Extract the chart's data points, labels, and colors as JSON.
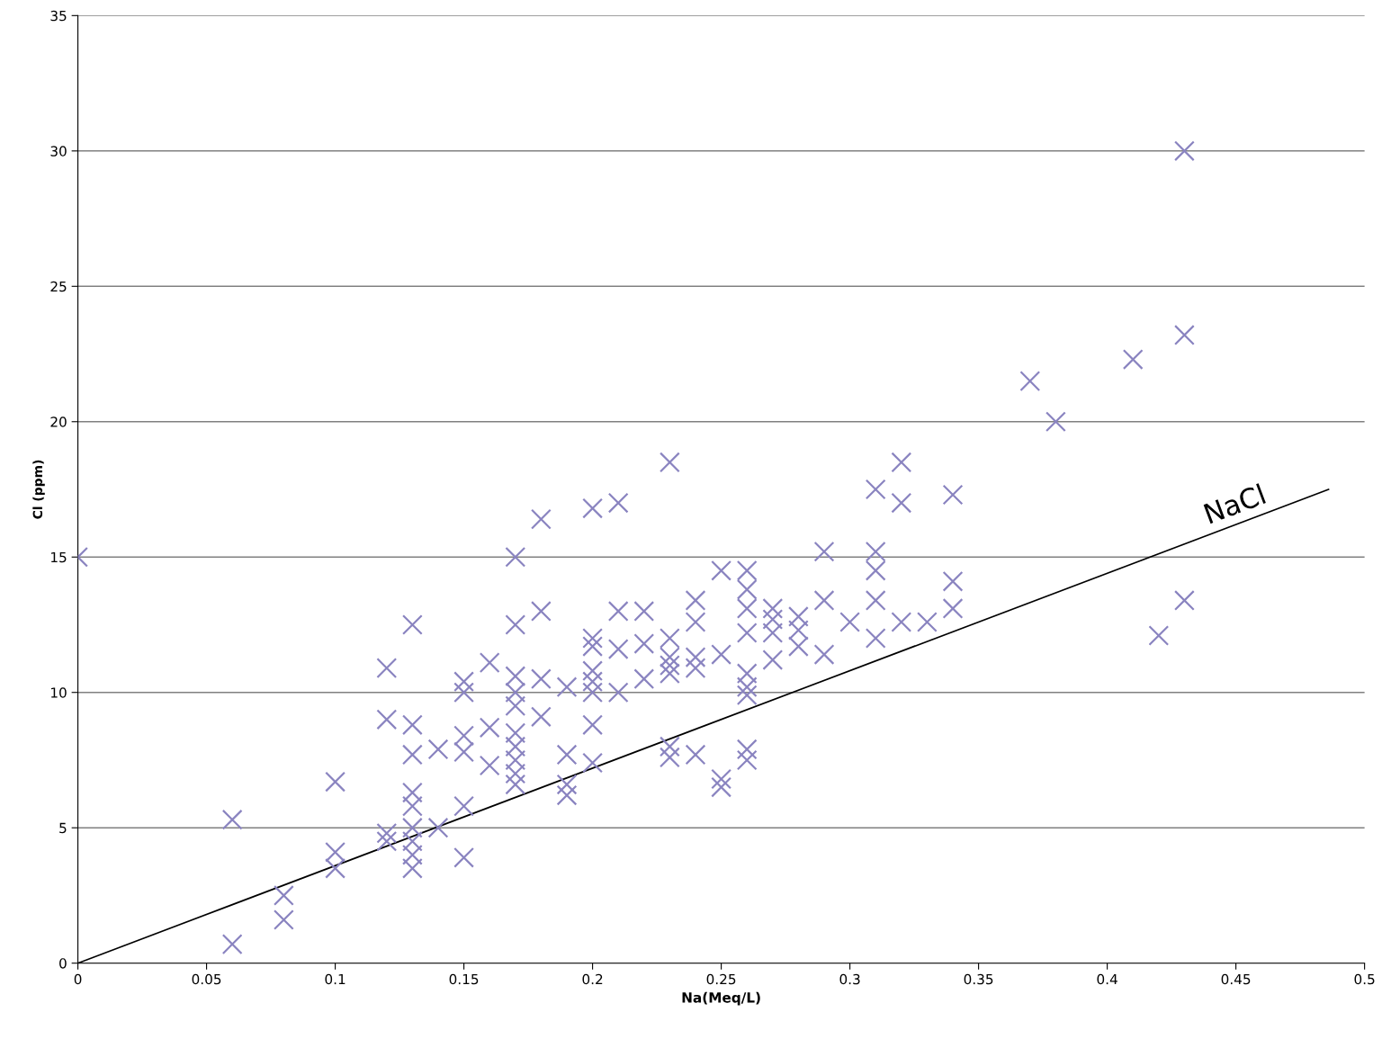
{
  "chart_data": {
    "type": "scatter",
    "xlabel": "Na(Meq/L)",
    "ylabel": "Cl (ppm)",
    "xlim": [
      0,
      0.5
    ],
    "ylim": [
      0,
      35
    ],
    "xticks": [
      0,
      0.05,
      0.1,
      0.15,
      0.2,
      0.25,
      0.3,
      0.35,
      0.4,
      0.45,
      0.5
    ],
    "yticks": [
      0,
      5,
      10,
      15,
      20,
      25,
      30,
      35
    ],
    "grid": "y",
    "legend": false,
    "series": [
      {
        "marker": "cross",
        "color": "#8a84c0",
        "x": [
          0,
          0.06,
          0.06,
          0.08,
          0.08,
          0.1,
          0.1,
          0.1,
          0.12,
          0.12,
          0.12,
          0.12,
          0.13,
          0.13,
          0.13,
          0.13,
          0.13,
          0.13,
          0.13,
          0.13,
          0.13,
          0.14,
          0.14,
          0.15,
          0.15,
          0.15,
          0.15,
          0.15,
          0.15,
          0.16,
          0.16,
          0.16,
          0.17,
          0.17,
          0.17,
          0.17,
          0.17,
          0.17,
          0.17,
          0.17,
          0.17,
          0.17,
          0.18,
          0.18,
          0.18,
          0.18,
          0.19,
          0.19,
          0.19,
          0.19,
          0.2,
          0.2,
          0.2,
          0.2,
          0.2,
          0.2,
          0.2,
          0.2,
          0.21,
          0.21,
          0.21,
          0.21,
          0.22,
          0.22,
          0.22,
          0.23,
          0.23,
          0.23,
          0.23,
          0.23,
          0.23,
          0.23,
          0.24,
          0.24,
          0.24,
          0.24,
          0.24,
          0.25,
          0.25,
          0.25,
          0.25,
          0.26,
          0.26,
          0.26,
          0.26,
          0.26,
          0.26,
          0.26,
          0.26,
          0.26,
          0.27,
          0.27,
          0.27,
          0.27,
          0.28,
          0.28,
          0.28,
          0.29,
          0.29,
          0.29,
          0.3,
          0.31,
          0.31,
          0.31,
          0.31,
          0.31,
          0.32,
          0.32,
          0.32,
          0.33,
          0.34,
          0.34,
          0.34,
          0.37,
          0.38,
          0.41,
          0.42,
          0.43,
          0.43,
          0.43
        ],
        "values": [
          15,
          5.3,
          0.7,
          2.5,
          1.6,
          6.7,
          4.1,
          3.5,
          10.9,
          9.0,
          4.8,
          4.5,
          12.5,
          8.8,
          7.7,
          6.3,
          5.8,
          5.0,
          4.5,
          4.0,
          3.5,
          7.9,
          5.0,
          10.4,
          10.0,
          8.4,
          7.8,
          5.8,
          3.9,
          11.1,
          8.7,
          7.3,
          15.0,
          12.5,
          10.6,
          10.0,
          9.5,
          8.5,
          8.0,
          7.5,
          7.0,
          6.6,
          16.4,
          13.0,
          10.5,
          9.1,
          10.2,
          7.7,
          6.6,
          6.2,
          16.8,
          12.0,
          11.7,
          10.8,
          10.4,
          10.0,
          8.8,
          7.4,
          17.0,
          13.0,
          11.6,
          10.0,
          13.0,
          11.8,
          10.5,
          18.5,
          12.0,
          11.3,
          11.0,
          10.7,
          8.0,
          7.6,
          13.4,
          12.6,
          11.3,
          10.9,
          7.7,
          14.5,
          11.4,
          6.8,
          6.5,
          14.5,
          13.8,
          13.1,
          12.2,
          10.7,
          10.2,
          9.9,
          7.9,
          7.5,
          13.1,
          12.7,
          12.2,
          11.2,
          12.8,
          12.3,
          11.7,
          15.2,
          13.4,
          11.4,
          12.6,
          17.5,
          15.2,
          14.5,
          13.4,
          12.0,
          18.5,
          17.0,
          12.6,
          12.6,
          17.3,
          14.1,
          13.1,
          21.5,
          20.0,
          22.3,
          12.1,
          30.0,
          23.2,
          13.4
        ]
      },
      {
        "type": "line",
        "color": "#000000",
        "x": [
          0,
          0.486
        ],
        "values": [
          0,
          17.5
        ]
      }
    ],
    "annotations": [
      {
        "text": "NaCl",
        "x": 0.44,
        "y": 16.0
      }
    ]
  }
}
